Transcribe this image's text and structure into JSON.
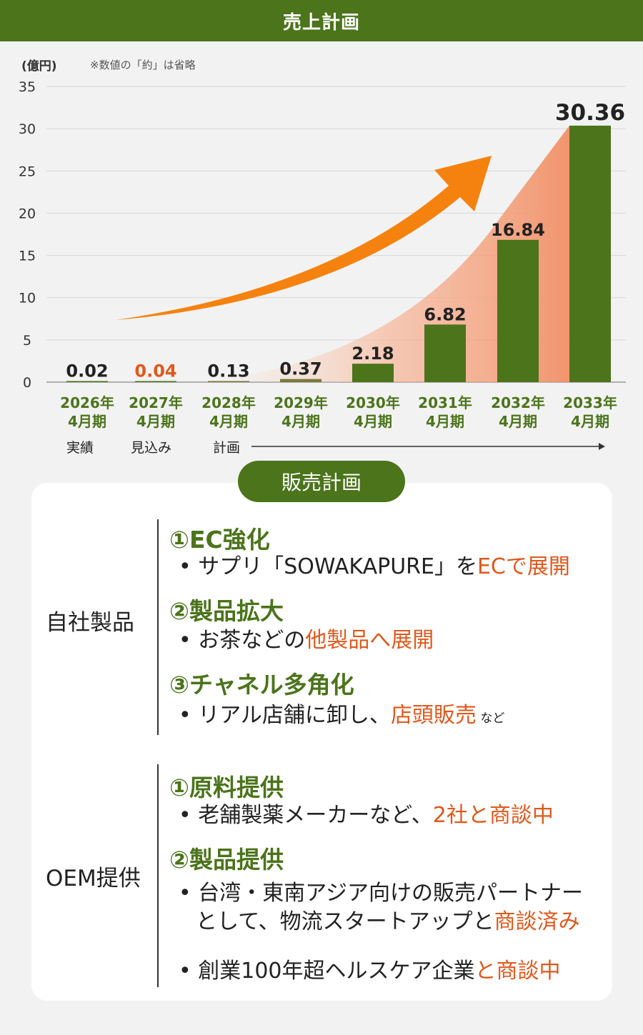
{
  "header": {
    "title": "売上計画"
  },
  "unit_label": "(億円)",
  "note": "※数値の「約」は省略",
  "chart_data": {
    "type": "bar",
    "title": "売上計画",
    "ylabel": "(億円)",
    "ylim": [
      0,
      35
    ],
    "yticks": [
      "35",
      "30",
      "25",
      "20",
      "15",
      "10",
      "5",
      "0"
    ],
    "categories": [
      {
        "year": "2026年",
        "period": "4月期"
      },
      {
        "year": "2027年",
        "period": "4月期"
      },
      {
        "year": "2028年",
        "period": "4月期"
      },
      {
        "year": "2029年",
        "period": "4月期"
      },
      {
        "year": "2030年",
        "period": "4月期"
      },
      {
        "year": "2031年",
        "period": "4月期"
      },
      {
        "year": "2032年",
        "period": "4月期"
      },
      {
        "year": "2033年",
        "period": "4月期"
      }
    ],
    "values": [
      0.02,
      0.04,
      0.13,
      0.37,
      2.18,
      6.82,
      16.84,
      30.36
    ],
    "value_labels": [
      "0.02",
      "0.04",
      "0.13",
      "0.37",
      "2.18",
      "6.82",
      "16.84",
      "30.36"
    ],
    "label_colors": [
      "#222222",
      "#e0591c",
      "#222222",
      "#222222",
      "#222222",
      "#222222",
      "#222222",
      "#222222"
    ],
    "bar_color": "#4b741b",
    "grid": true,
    "arrow_color": "#f5820e"
  },
  "periods": {
    "actual": "実績",
    "forecast": "見込み",
    "plan": "計画"
  },
  "sales_plan": {
    "title": "販売計画",
    "categories": [
      {
        "name": "自社製品",
        "items": [
          {
            "head": "①EC強化",
            "bullets": [
              [
                {
                  "t": "サプリ「SOWAKAPURE」を"
                },
                {
                  "t": "ECで展開",
                  "hl": true
                }
              ]
            ]
          },
          {
            "head": "②製品拡大",
            "bullets": [
              [
                {
                  "t": "お茶などの"
                },
                {
                  "t": "他製品へ展開",
                  "hl": true
                }
              ]
            ]
          },
          {
            "head": "③チャネル多角化",
            "bullets": [
              [
                {
                  "t": "リアル店舗に卸し、"
                },
                {
                  "t": "店頭販売",
                  "hl": true
                },
                {
                  "t": " など",
                  "small": true
                }
              ]
            ]
          }
        ]
      },
      {
        "name": "OEM提供",
        "items": [
          {
            "head": "①原料提供",
            "bullets": [
              [
                {
                  "t": "老舗製薬メーカーなど、"
                },
                {
                  "t": "2社と商談中",
                  "hl": true
                }
              ]
            ]
          },
          {
            "head": "②製品提供",
            "bullets": [
              [
                {
                  "t": "台湾・東南アジア向けの販売パートナー"
                }
              ],
              [
                {
                  "t": "として、物流スタートアップと"
                },
                {
                  "t": "商談済み",
                  "hl": true
                }
              ],
              [
                {
                  "t": "創業100年超ヘルスケア企業"
                },
                {
                  "t": "と商談中",
                  "hl": true
                }
              ]
            ]
          }
        ]
      }
    ]
  }
}
